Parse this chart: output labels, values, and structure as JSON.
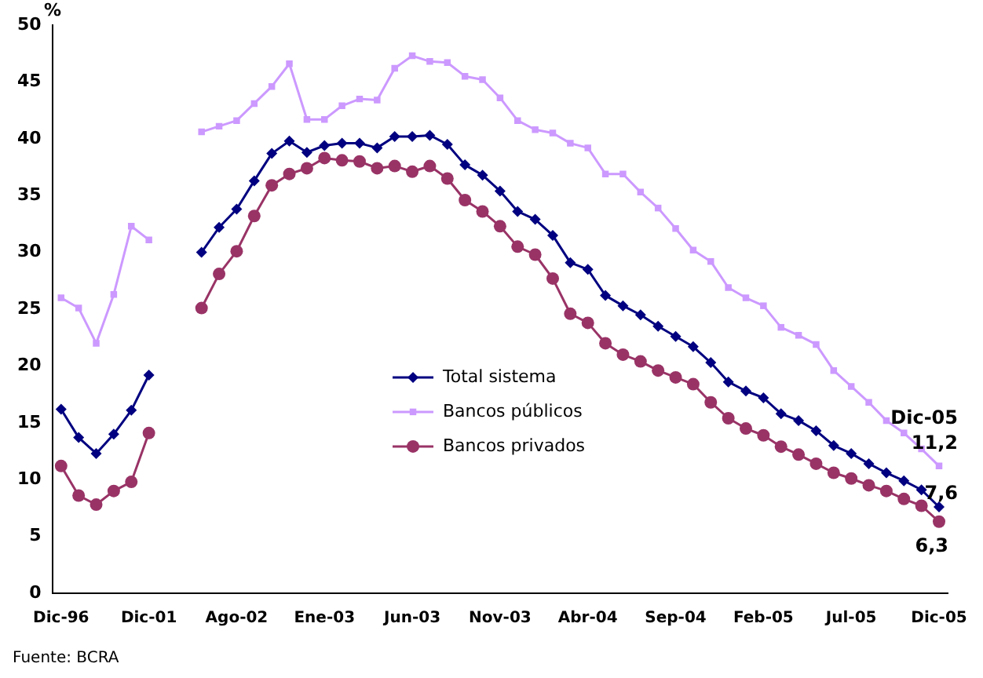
{
  "chart_data": {
    "type": "line",
    "ylabel": "%",
    "categories": [
      "Dic-96",
      null,
      null,
      null,
      null,
      "Dic-01",
      null,
      null,
      null,
      null,
      "Ago-02",
      null,
      null,
      null,
      null,
      "Ene-03",
      null,
      null,
      null,
      null,
      "Jun-03",
      null,
      null,
      null,
      null,
      "Nov-03",
      null,
      null,
      null,
      null,
      "Abr-04",
      null,
      null,
      null,
      null,
      "Sep-04",
      null,
      null,
      null,
      null,
      "Feb-05",
      null,
      null,
      null,
      null,
      "Jul-05",
      null,
      null,
      null,
      null,
      "Dic-05"
    ],
    "series": [
      {
        "name": "Total sistema",
        "color": "#000080",
        "marker": "diamond",
        "values": [
          16.2,
          13.7,
          12.3,
          14.0,
          16.1,
          19.2,
          null,
          null,
          30.0,
          32.2,
          33.8,
          36.3,
          38.7,
          39.8,
          38.8,
          39.4,
          39.6,
          39.6,
          39.2,
          40.2,
          40.2,
          40.3,
          39.5,
          37.7,
          36.8,
          35.4,
          33.6,
          32.9,
          31.5,
          29.1,
          28.5,
          26.2,
          25.3,
          24.5,
          23.5,
          22.6,
          21.7,
          20.3,
          18.6,
          17.8,
          17.2,
          15.8,
          15.2,
          14.3,
          13.0,
          12.3,
          11.4,
          10.6,
          9.9,
          9.1,
          7.6
        ],
        "value_labels": [
          null,
          null,
          null,
          null,
          null,
          null,
          null,
          null,
          null,
          null,
          null,
          null,
          null,
          null,
          null,
          null,
          null,
          null,
          null,
          null,
          null,
          null,
          null,
          null,
          null,
          null,
          null,
          null,
          null,
          null,
          null,
          null,
          null,
          null,
          null,
          null,
          null,
          null,
          null,
          null,
          null,
          null,
          null,
          null,
          null,
          null,
          null,
          null,
          null,
          null,
          "7,6"
        ]
      },
      {
        "name": "Bancos públicos",
        "color": "#cc99ff",
        "marker": "square",
        "values": [
          26.0,
          25.1,
          22.0,
          26.3,
          32.3,
          31.1,
          null,
          null,
          40.6,
          41.1,
          41.6,
          43.1,
          44.6,
          46.6,
          41.7,
          41.7,
          42.9,
          43.5,
          43.4,
          46.2,
          47.3,
          46.8,
          46.7,
          45.5,
          45.2,
          43.6,
          41.6,
          40.8,
          40.5,
          39.6,
          39.2,
          36.9,
          36.9,
          35.3,
          33.9,
          32.1,
          30.2,
          29.2,
          26.9,
          26.0,
          25.3,
          23.4,
          22.7,
          21.9,
          19.6,
          18.2,
          16.8,
          15.2,
          14.1,
          12.7,
          11.2
        ],
        "value_labels": [
          null,
          null,
          null,
          null,
          null,
          null,
          null,
          null,
          null,
          null,
          null,
          null,
          null,
          null,
          null,
          null,
          null,
          null,
          null,
          null,
          null,
          null,
          null,
          null,
          null,
          null,
          null,
          null,
          null,
          null,
          null,
          null,
          null,
          null,
          null,
          null,
          null,
          null,
          null,
          null,
          null,
          null,
          null,
          null,
          null,
          null,
          null,
          null,
          null,
          null,
          "11,2"
        ]
      },
      {
        "name": "Bancos privados",
        "color": "#993366",
        "marker": "circle",
        "values": [
          11.2,
          8.6,
          7.8,
          9.0,
          9.8,
          14.1,
          null,
          null,
          25.1,
          28.1,
          30.1,
          33.2,
          35.9,
          36.9,
          37.4,
          38.3,
          38.1,
          38.0,
          37.4,
          37.6,
          37.1,
          37.6,
          36.5,
          34.6,
          33.6,
          32.3,
          30.5,
          29.8,
          27.7,
          24.6,
          23.8,
          22.0,
          21.0,
          20.4,
          19.6,
          19.0,
          18.4,
          16.8,
          15.4,
          14.5,
          13.9,
          12.9,
          12.2,
          11.4,
          10.6,
          10.1,
          9.5,
          9.0,
          8.3,
          7.7,
          6.3
        ],
        "value_labels": [
          null,
          null,
          null,
          null,
          null,
          null,
          null,
          null,
          null,
          null,
          null,
          null,
          null,
          null,
          null,
          null,
          null,
          null,
          null,
          null,
          null,
          null,
          null,
          null,
          null,
          null,
          null,
          null,
          null,
          null,
          null,
          null,
          null,
          null,
          null,
          null,
          null,
          null,
          null,
          null,
          null,
          null,
          null,
          null,
          null,
          null,
          null,
          null,
          null,
          null,
          "6,3"
        ]
      }
    ],
    "ylim": [
      0,
      50
    ],
    "yticks": [
      0,
      5,
      10,
      15,
      20,
      25,
      30,
      35,
      40,
      45,
      50
    ],
    "grid": false,
    "legend": "center",
    "annotations": [
      {
        "text": "Dic-05",
        "x": "Dic-05",
        "y": 11.2
      },
      "Fuente: BCRA"
    ]
  }
}
